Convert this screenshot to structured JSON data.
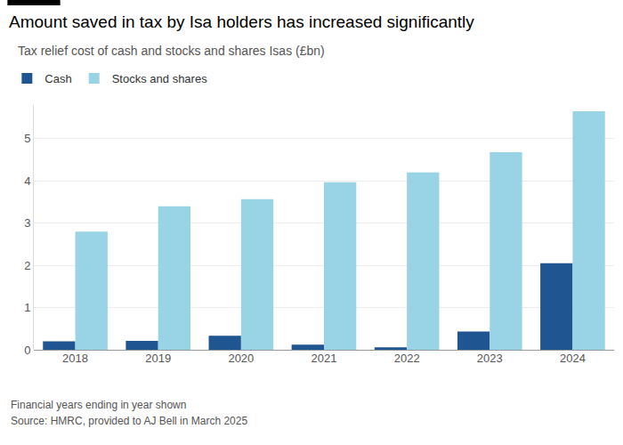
{
  "chart_data": {
    "type": "bar",
    "title": "Amount saved in tax by Isa holders has increased significantly",
    "subtitle": "Tax relief cost of cash and stocks and shares Isas (£bn)",
    "categories": [
      "2018",
      "2019",
      "2020",
      "2021",
      "2022",
      "2023",
      "2024"
    ],
    "series": [
      {
        "name": "Cash",
        "color": "#1f5591",
        "values": [
          0.2,
          0.21,
          0.33,
          0.12,
          0.06,
          0.43,
          2.05
        ]
      },
      {
        "name": "Stocks and shares",
        "color": "#99d4e6",
        "values": [
          2.8,
          3.4,
          3.57,
          3.97,
          4.2,
          4.68,
          5.65
        ]
      }
    ],
    "ylim": [
      0,
      5.8
    ],
    "yticks": [
      0,
      1,
      2,
      3,
      4,
      5
    ],
    "grid": true,
    "legend": "top left",
    "annotations": [
      "Financial years ending in year shown",
      "Source: HMRC, provided to AJ Bell in March 2025"
    ]
  }
}
